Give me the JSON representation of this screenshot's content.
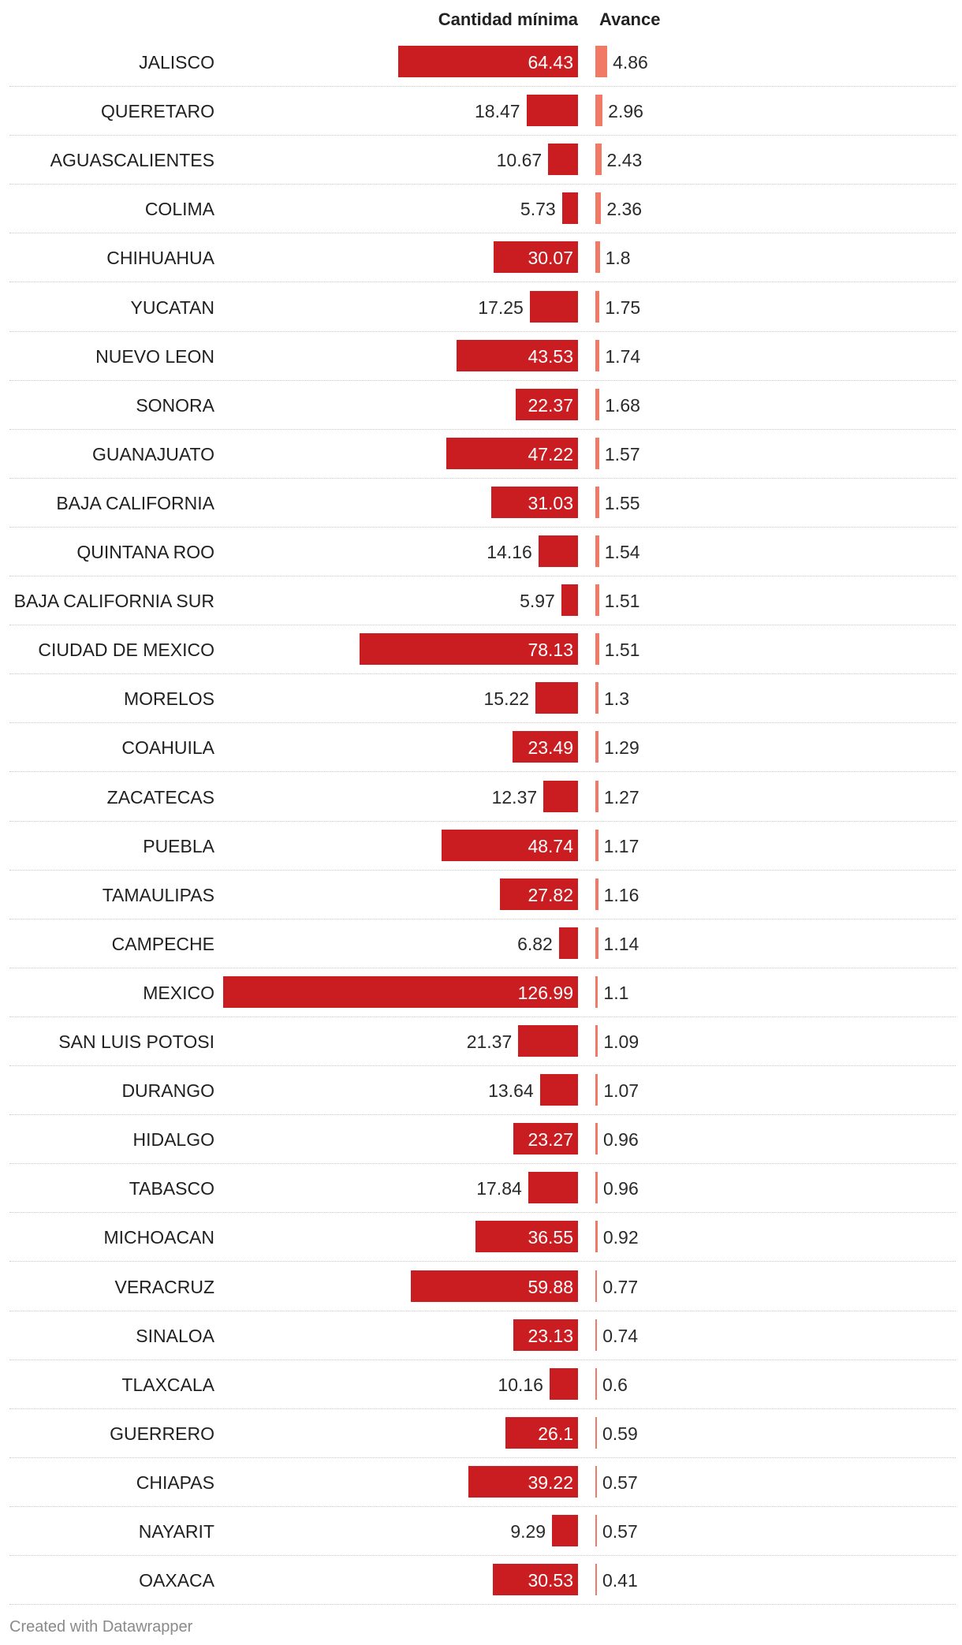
{
  "chart_data": {
    "type": "table",
    "columns": [
      "",
      "Cantidad mínima",
      "Avance"
    ],
    "categories": [
      "JALISCO",
      "QUERETARO",
      "AGUASCALIENTES",
      "COLIMA",
      "CHIHUAHUA",
      "YUCATAN",
      "NUEVO LEON",
      "SONORA",
      "GUANAJUATO",
      "BAJA CALIFORNIA",
      "QUINTANA ROO",
      "BAJA CALIFORNIA SUR",
      "CIUDAD DE MEXICO",
      "MORELOS",
      "COAHUILA",
      "ZACATECAS",
      "PUEBLA",
      "TAMAULIPAS",
      "CAMPECHE",
      "MEXICO",
      "SAN LUIS POTOSI",
      "DURANGO",
      "HIDALGO",
      "TABASCO",
      "MICHOACAN",
      "VERACRUZ",
      "SINALOA",
      "TLAXCALA",
      "GUERRERO",
      "CHIAPAS",
      "NAYARIT",
      "OAXACA"
    ],
    "series": [
      {
        "name": "Cantidad mínima",
        "color": "#c91d21",
        "values": [
          64.43,
          18.47,
          10.67,
          5.73,
          30.07,
          17.25,
          43.53,
          22.37,
          47.22,
          31.03,
          14.16,
          5.97,
          78.13,
          15.22,
          23.49,
          12.37,
          48.74,
          27.82,
          6.82,
          126.99,
          21.37,
          13.64,
          23.27,
          17.84,
          36.55,
          59.88,
          23.13,
          10.16,
          26.1,
          39.22,
          9.29,
          30.53
        ],
        "labels": [
          "64.43",
          "18.47",
          "10.67",
          "5.73",
          "30.07",
          "17.25",
          "43.53",
          "22.37",
          "47.22",
          "31.03",
          "14.16",
          "5.97",
          "78.13",
          "15.22",
          "23.49",
          "12.37",
          "48.74",
          "27.82",
          "6.82",
          "126.99",
          "21.37",
          "13.64",
          "23.27",
          "17.84",
          "36.55",
          "59.88",
          "23.13",
          "10.16",
          "26.1",
          "39.22",
          "9.29",
          "30.53"
        ]
      },
      {
        "name": "Avance",
        "color": "#f07a66",
        "values": [
          4.86,
          2.96,
          2.43,
          2.36,
          1.8,
          1.75,
          1.74,
          1.68,
          1.57,
          1.55,
          1.54,
          1.51,
          1.51,
          1.3,
          1.29,
          1.27,
          1.17,
          1.16,
          1.14,
          1.1,
          1.09,
          1.07,
          0.96,
          0.96,
          0.92,
          0.77,
          0.74,
          0.6,
          0.59,
          0.57,
          0.57,
          0.41
        ],
        "labels": [
          "4.86",
          "2.96",
          "2.43",
          "2.36",
          "1.8",
          "1.75",
          "1.74",
          "1.68",
          "1.57",
          "1.55",
          "1.54",
          "1.51",
          "1.51",
          "1.3",
          "1.29",
          "1.27",
          "1.17",
          "1.16",
          "1.14",
          "1.1",
          "1.09",
          "1.07",
          "0.96",
          "0.96",
          "0.92",
          "0.77",
          "0.74",
          "0.6",
          "0.59",
          "0.57",
          "0.57",
          "0.41"
        ]
      }
    ],
    "grid": false
  },
  "footer": "Created with Datawrapper"
}
